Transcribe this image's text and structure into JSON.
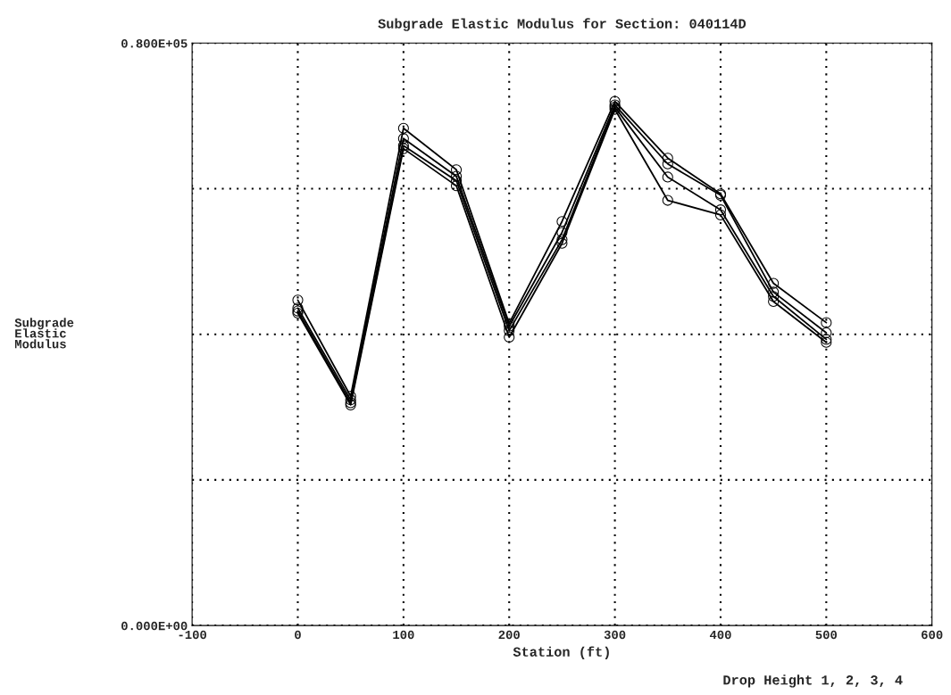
{
  "chart_data": {
    "type": "line",
    "title": "Subgrade Elastic Modulus for Section: 040114D",
    "xlabel": "Station (ft)",
    "ylabel": "Subgrade\nElastic\nModulus",
    "x": [
      0,
      50,
      100,
      150,
      200,
      250,
      300,
      350,
      400,
      450,
      500
    ],
    "series": [
      {
        "color": "#000000",
        "values": [
          44700,
          31500,
          68300,
          62600,
          41500,
          55500,
          72000,
          64200,
          59300,
          47000,
          41600
        ]
      },
      {
        "color": "#000000",
        "values": [
          43600,
          31000,
          66900,
          61700,
          41100,
          54000,
          71500,
          63400,
          59100,
          45800,
          40200
        ]
      },
      {
        "color": "#000000",
        "values": [
          43200,
          30600,
          65900,
          61100,
          40500,
          53000,
          71200,
          61600,
          57100,
          45200,
          39300
        ]
      },
      {
        "color": "#000000",
        "values": [
          42900,
          30300,
          65500,
          60400,
          39600,
          52500,
          70900,
          58400,
          56400,
          44500,
          38900
        ]
      }
    ],
    "xlim": [
      -100,
      600
    ],
    "xticks": [
      -100,
      0,
      100,
      200,
      300,
      400,
      500,
      600
    ],
    "ylim": [
      0,
      80000
    ],
    "yticks": [
      {
        "value": 0,
        "label": "0.000E+00"
      },
      {
        "value": 20000,
        "label": null
      },
      {
        "value": 40000,
        "label": null
      },
      {
        "value": 60000,
        "label": null
      },
      {
        "value": 80000,
        "label": "0.800E+05"
      }
    ],
    "grid": true,
    "marker": "circle",
    "line_style": "solid",
    "annotations": [
      "Drop Height 1, 2, 3, 4"
    ]
  }
}
